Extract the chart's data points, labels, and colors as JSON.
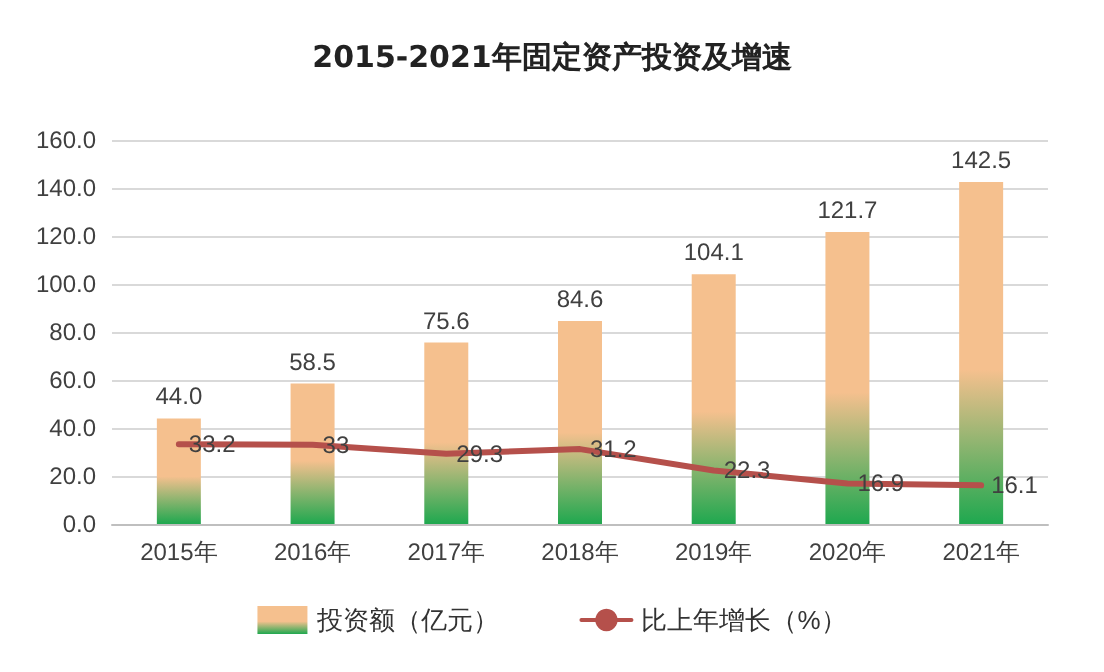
{
  "chart_data": {
    "type": "bar",
    "title": "2015-2021年固定资产投资及增速",
    "categories": [
      "2015年",
      "2016年",
      "2017年",
      "2018年",
      "2019年",
      "2020年",
      "2021年"
    ],
    "series": [
      {
        "name": "投资额（亿元）",
        "color": "#f5c08e",
        "values": [
          44.0,
          58.5,
          75.6,
          84.6,
          104.1,
          121.7,
          142.5
        ],
        "value_labels": [
          "44.0",
          "58.5",
          "75.6",
          "84.6",
          "104.1",
          "121.7",
          "142.5"
        ]
      },
      {
        "name": "比上年增长（%）",
        "type": "line",
        "color": "#b5504b",
        "values": [
          33.2,
          33,
          29.3,
          31.2,
          22.3,
          16.9,
          16.1
        ],
        "value_labels": [
          "33.2",
          "33",
          "29.3",
          "31.2",
          "22.3",
          "16.9",
          "16.1"
        ]
      }
    ],
    "ylim": [
      0,
      160
    ],
    "yticks": [
      {
        "value": 0,
        "label": "0.0"
      },
      {
        "value": 20,
        "label": "20.0"
      },
      {
        "value": 40,
        "label": "40.0"
      },
      {
        "value": 60,
        "label": "60.0"
      },
      {
        "value": 80,
        "label": "80.0"
      },
      {
        "value": 100,
        "label": "100.0"
      },
      {
        "value": 120,
        "label": "120.0"
      },
      {
        "value": 140,
        "label": "140.0"
      },
      {
        "value": 160,
        "label": "160.0"
      }
    ],
    "grid": "y",
    "legend": "bottom",
    "marker": "none",
    "line_style": "solid"
  }
}
